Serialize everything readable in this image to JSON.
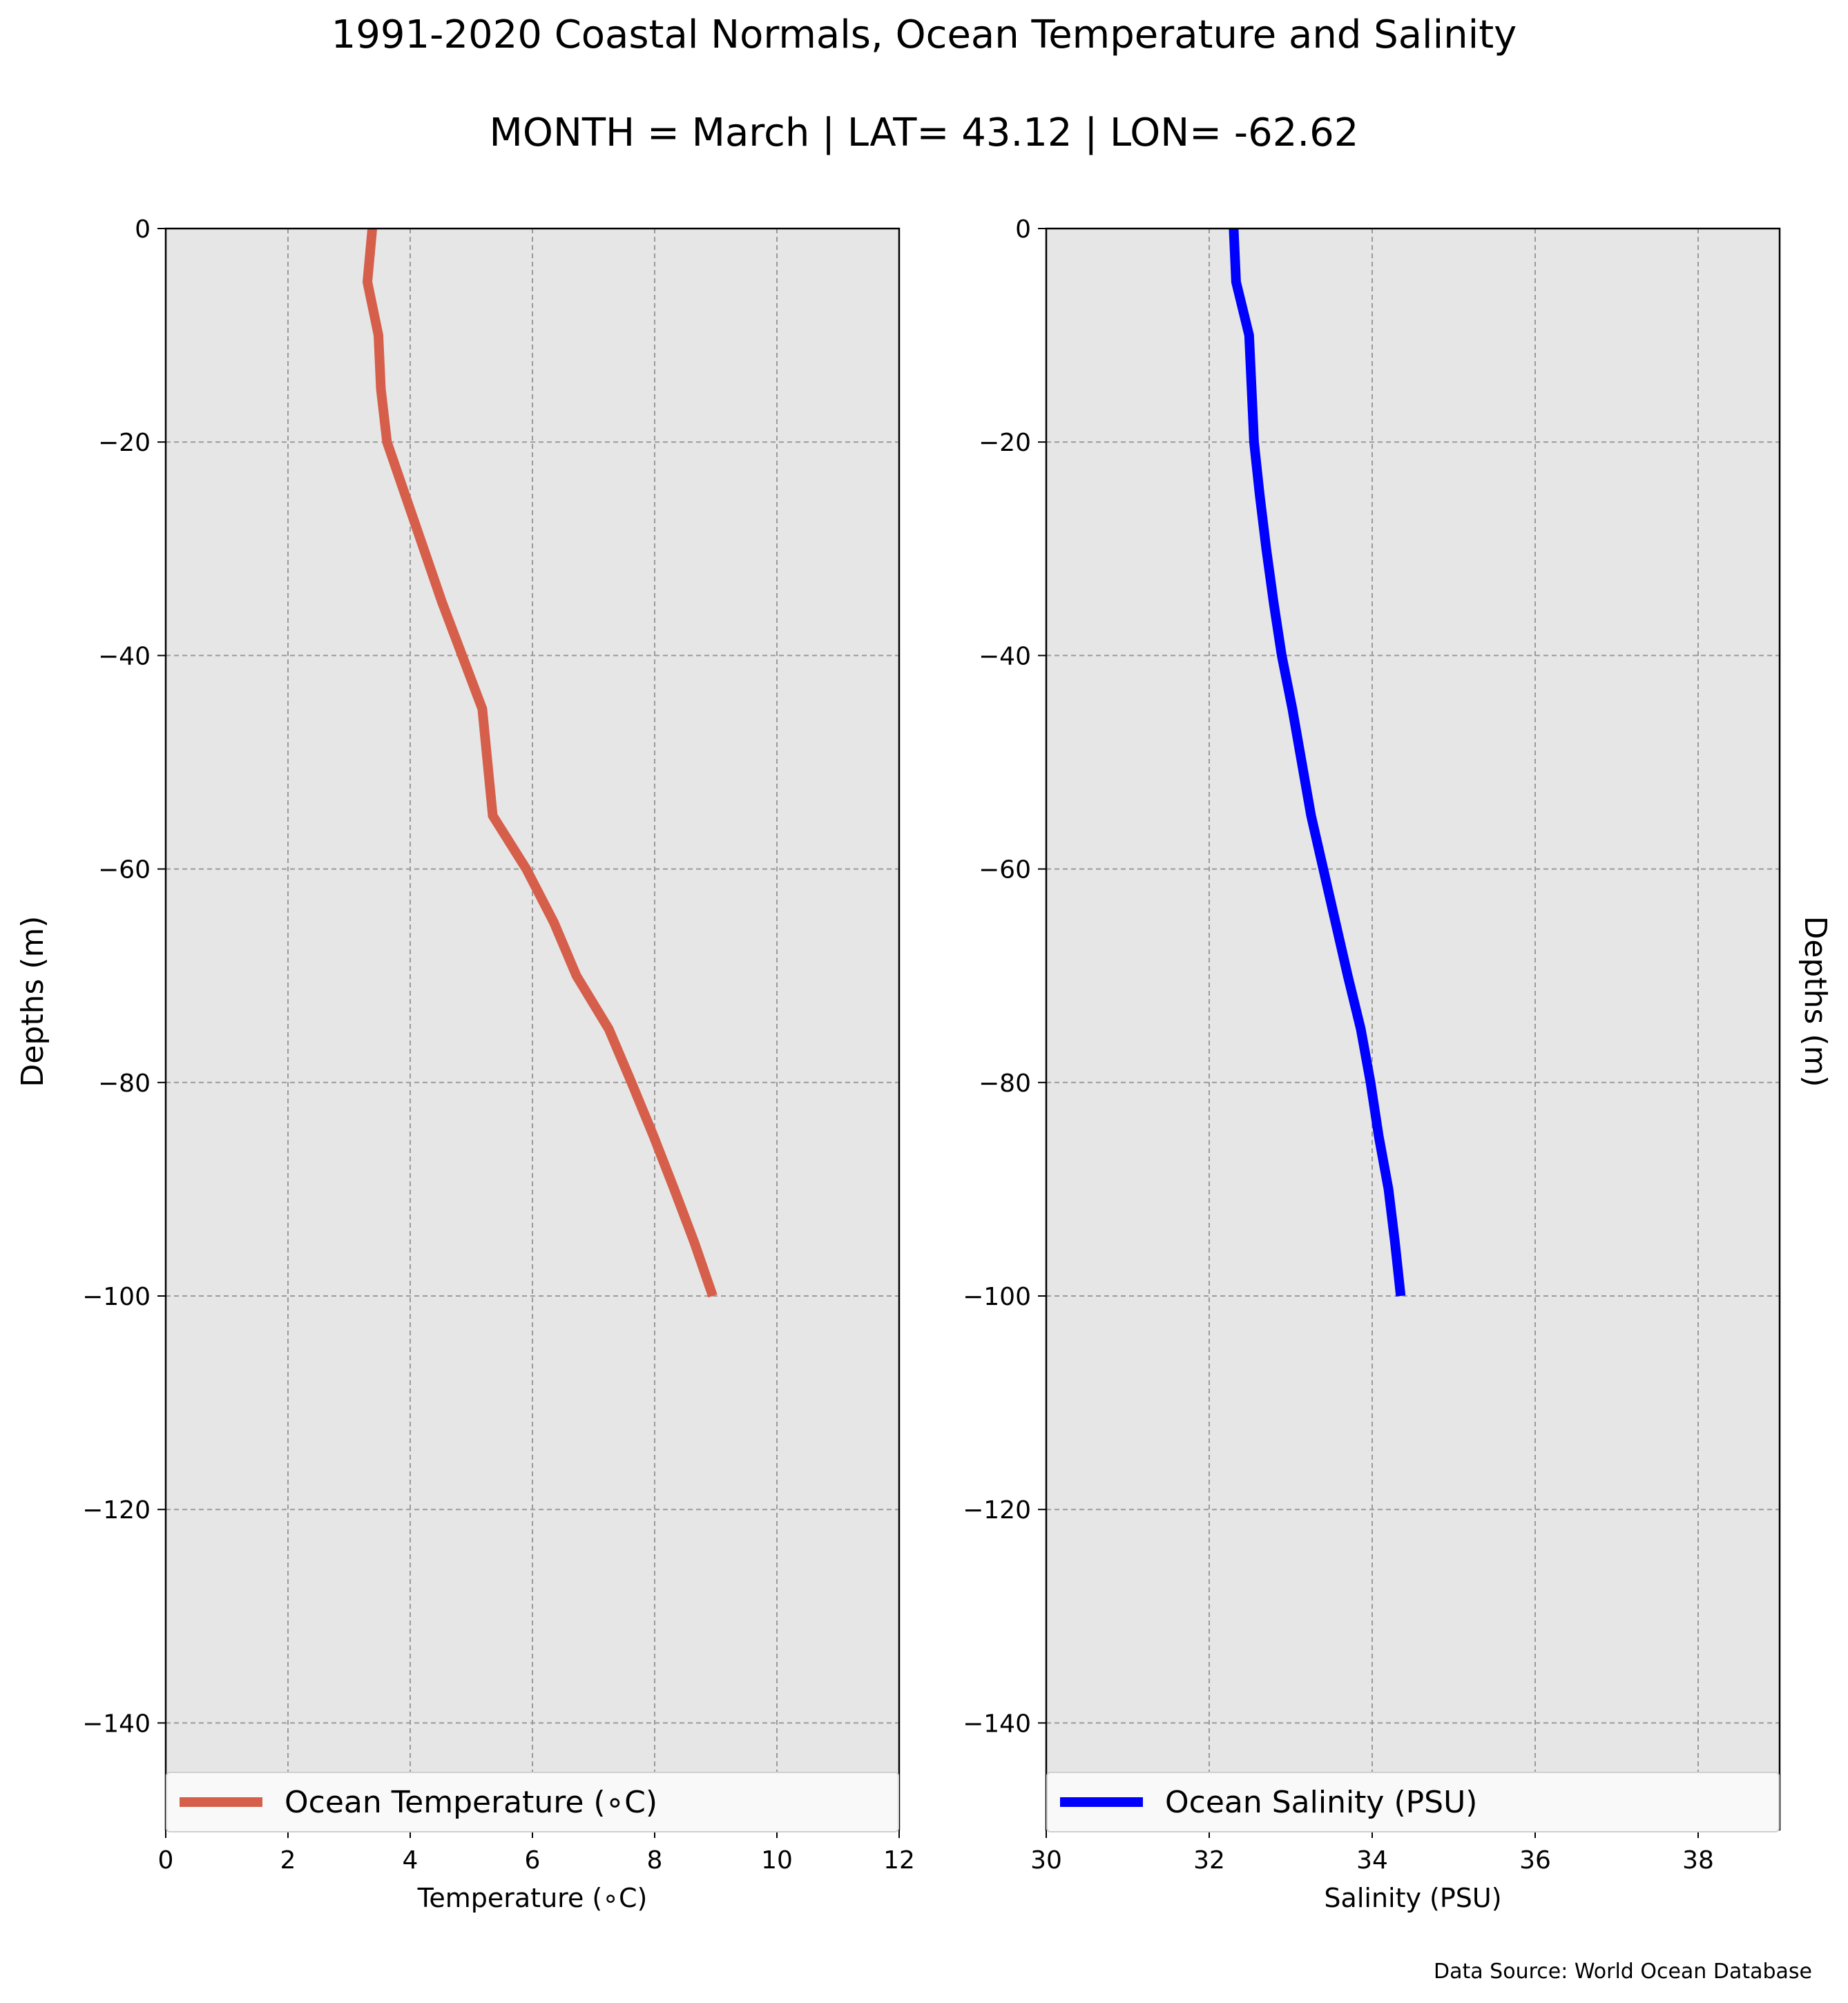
{
  "title": "1991-2020 Coastal Normals, Ocean Temperature and Salinity",
  "subtitle": "MONTH = March | LAT= 43.12 | LON= -62.62",
  "source": "Data Source: World Ocean Database",
  "colors": {
    "temperature": "#d65f4b",
    "salinity": "#0000ff",
    "plot_bg": "#e6e6e6"
  },
  "chart_data": [
    {
      "type": "line",
      "xlabel": "Temperature ($^\\circ$C)",
      "xlabel_text": "Temperature (∘C)",
      "ylabel": "Depths (m)",
      "xlim": [
        0,
        12
      ],
      "ylim": [
        -150,
        0
      ],
      "xticks": [
        0,
        2,
        4,
        6,
        8,
        10,
        12
      ],
      "yticks": [
        0,
        -20,
        -40,
        -60,
        -80,
        -100,
        -120,
        -140
      ],
      "grid": true,
      "legend_placement": "bottom",
      "series": [
        {
          "name": "Ocean Temperature (∘C)",
          "x": [
            3.38,
            3.3,
            3.48,
            3.52,
            3.62,
            3.92,
            4.22,
            4.52,
            4.85,
            5.18,
            5.35,
            5.9,
            6.35,
            6.72,
            7.25,
            7.62,
            7.98,
            8.32,
            8.65,
            8.95
          ],
          "y": [
            0,
            -5,
            -10,
            -15,
            -20,
            -25,
            -30,
            -35,
            -40,
            -45,
            -55,
            -60,
            -65,
            -70,
            -75,
            -80,
            -85,
            -90,
            -95,
            -100
          ]
        }
      ]
    },
    {
      "type": "line",
      "xlabel": "Salinity (PSU)",
      "ylabel": "Depths (m)",
      "xlim": [
        30,
        39
      ],
      "ylim": [
        -150,
        0
      ],
      "xticks": [
        30,
        32,
        34,
        36,
        38
      ],
      "yticks": [
        0,
        -20,
        -40,
        -60,
        -80,
        -100,
        -120,
        -140
      ],
      "grid": true,
      "legend_placement": "bottom",
      "series": [
        {
          "name": "Ocean Salinity (PSU)",
          "x": [
            32.3,
            32.33,
            32.49,
            32.52,
            32.55,
            32.62,
            32.7,
            32.79,
            32.89,
            33.02,
            33.25,
            33.4,
            33.55,
            33.7,
            33.86,
            33.98,
            34.08,
            34.2,
            34.28,
            34.35
          ],
          "y": [
            0,
            -5,
            -10,
            -15,
            -20,
            -25,
            -30,
            -35,
            -40,
            -45,
            -55,
            -60,
            -65,
            -70,
            -75,
            -80,
            -85,
            -90,
            -95,
            -100
          ]
        }
      ]
    }
  ]
}
